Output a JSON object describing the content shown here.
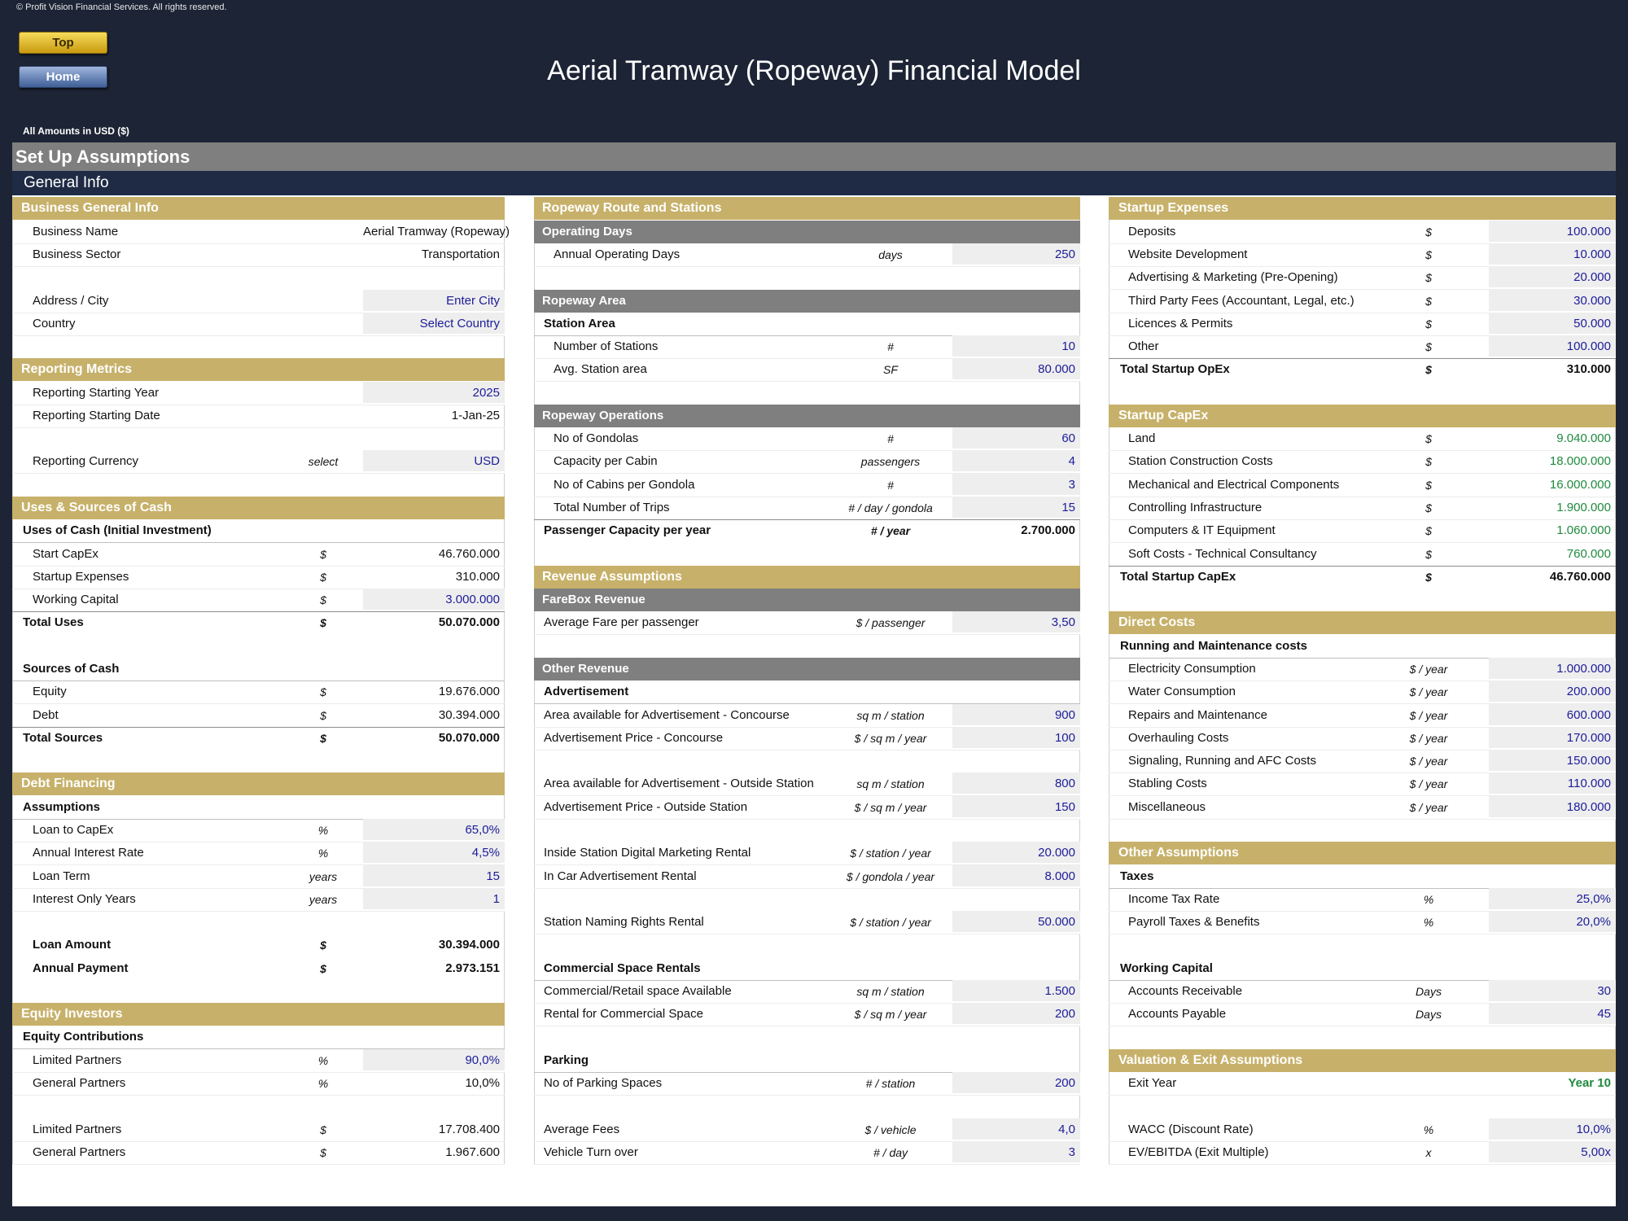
{
  "header": {
    "copyright": "© Profit Vision Financial Services. All rights reserved.",
    "buttons": [
      "Top",
      "Home"
    ],
    "title": "Aerial Tramway (Ropeway) Financial Model",
    "currency_note": "All Amounts in  USD ($)",
    "sheet_title": "Set Up Assumptions",
    "section_title": "General Info"
  },
  "columns": [
    {
      "rows": [
        {
          "kind": "section",
          "label": "Business General Info"
        },
        {
          "kind": "item",
          "label": "Business Name",
          "value": "Aerial Tramway (Ropeway)",
          "style": "calc"
        },
        {
          "kind": "item",
          "label": "Business Sector",
          "value": "Transportation",
          "style": "calc"
        },
        null,
        {
          "kind": "item",
          "label": "Address / City",
          "value": "Enter City",
          "style": "input"
        },
        {
          "kind": "item",
          "label": "Country",
          "value": "Select Country",
          "style": "input"
        },
        null,
        {
          "kind": "section",
          "label": "Reporting Metrics"
        },
        {
          "kind": "item",
          "label": "Reporting Starting Year",
          "value": "2025",
          "style": "input"
        },
        {
          "kind": "item",
          "label": "Reporting Starting Date",
          "value": "1-Jan-25",
          "style": "calc"
        },
        null,
        {
          "kind": "item",
          "label": "Reporting Currency",
          "unit": "select",
          "value": "USD",
          "style": "input"
        },
        null,
        {
          "kind": "section",
          "label": "Uses & Sources of Cash"
        },
        {
          "kind": "heading",
          "label": "Uses of Cash (Initial Investment)"
        },
        {
          "kind": "item",
          "label": "Start CapEx",
          "unit": "$",
          "value": "46.760.000",
          "style": "calc"
        },
        {
          "kind": "item",
          "label": "Startup Expenses",
          "unit": "$",
          "value": "310.000",
          "style": "calc"
        },
        {
          "kind": "item",
          "label": "Working Capital",
          "unit": "$",
          "value": "3.000.000",
          "style": "input"
        },
        {
          "kind": "total",
          "label": "Total Uses",
          "unit": "$",
          "value": "50.070.000",
          "style": "calc"
        },
        null,
        {
          "kind": "heading",
          "label": "Sources of Cash"
        },
        {
          "kind": "item",
          "label": "Equity",
          "unit": "$",
          "value": "19.676.000",
          "style": "calc"
        },
        {
          "kind": "item",
          "label": "Debt",
          "unit": "$",
          "value": "30.394.000",
          "style": "calc"
        },
        {
          "kind": "total",
          "label": "Total Sources",
          "unit": "$",
          "value": "50.070.000",
          "style": "calc"
        },
        null,
        {
          "kind": "section",
          "label": "Debt Financing"
        },
        {
          "kind": "heading",
          "label": "Assumptions"
        },
        {
          "kind": "item",
          "label": "Loan to CapEx",
          "unit": "%",
          "value": "65,0%",
          "style": "input"
        },
        {
          "kind": "item",
          "label": "Annual Interest Rate",
          "unit": "%",
          "value": "4,5%",
          "style": "input"
        },
        {
          "kind": "item",
          "label": "Loan Term",
          "unit": "years",
          "value": "15",
          "style": "input"
        },
        {
          "kind": "item",
          "label": "Interest Only Years",
          "unit": "years",
          "value": "1",
          "style": "input"
        },
        null,
        {
          "kind": "emphasis",
          "label": "Loan Amount",
          "unit": "$",
          "value": "30.394.000",
          "style": "calc"
        },
        {
          "kind": "emphasis",
          "label": "Annual Payment",
          "unit": "$",
          "value": "2.973.151",
          "style": "calc"
        },
        null,
        {
          "kind": "section",
          "label": "Equity Investors"
        },
        {
          "kind": "heading",
          "label": "Equity Contributions"
        },
        {
          "kind": "item",
          "label": "Limited Partners",
          "unit": "%",
          "value": "90,0%",
          "style": "input"
        },
        {
          "kind": "item",
          "label": "General Partners",
          "unit": "%",
          "value": "10,0%",
          "style": "calc"
        },
        null,
        {
          "kind": "item",
          "label": "Limited Partners",
          "unit": "$",
          "value": "17.708.400",
          "style": "calc"
        },
        {
          "kind": "item",
          "label": "General Partners",
          "unit": "$",
          "value": "1.967.600",
          "style": "calc"
        }
      ]
    },
    {
      "rows": [
        {
          "kind": "section",
          "label": "Ropeway Route and Stations"
        },
        {
          "kind": "subsection",
          "label": "Operating Days"
        },
        {
          "kind": "item",
          "label": "Annual Operating Days",
          "unit": "days",
          "value": "250",
          "style": "input"
        },
        null,
        {
          "kind": "subsection",
          "label": "Ropeway Area"
        },
        {
          "kind": "heading",
          "label": "Station Area"
        },
        {
          "kind": "item",
          "label": "Number of Stations",
          "unit": "#",
          "value": "10",
          "style": "input"
        },
        {
          "kind": "item",
          "label": "Avg. Station area",
          "unit": "SF",
          "value": "80.000",
          "style": "input"
        },
        null,
        {
          "kind": "subsection",
          "label": "Ropeway Operations"
        },
        {
          "kind": "item",
          "label": "No of Gondolas",
          "unit": "#",
          "value": "60",
          "style": "input"
        },
        {
          "kind": "item",
          "label": "Capacity per Cabin",
          "unit": "passengers",
          "value": "4",
          "style": "input"
        },
        {
          "kind": "item",
          "label": "No of Cabins per Gondola",
          "unit": "#",
          "value": "3",
          "style": "input"
        },
        {
          "kind": "item",
          "label": "Total Number of Trips",
          "unit": "# / day / gondola",
          "value": "15",
          "style": "input"
        },
        {
          "kind": "total",
          "label": "Passenger Capacity per year",
          "unit": "# / year",
          "value": "2.700.000",
          "style": "calc"
        },
        null,
        {
          "kind": "section",
          "label": "Revenue Assumptions"
        },
        {
          "kind": "subsection",
          "label": "FareBox Revenue"
        },
        {
          "kind": "plain",
          "label": "Average Fare per passenger",
          "unit": "$ / passenger",
          "value": "3,50",
          "style": "input"
        },
        null,
        {
          "kind": "subsection",
          "label": "Other Revenue"
        },
        {
          "kind": "heading",
          "label": "Advertisement"
        },
        {
          "kind": "plain",
          "label": "Area available for Advertisement - Concourse",
          "unit": "sq m / station",
          "value": "900",
          "style": "input"
        },
        {
          "kind": "plain",
          "label": "Advertisement Price - Concourse",
          "unit": "$ / sq m / year",
          "value": "100",
          "style": "input"
        },
        null,
        {
          "kind": "plain",
          "label": "Area available for Advertisement - Outside Station",
          "unit": "sq m / station",
          "value": "800",
          "style": "input"
        },
        {
          "kind": "plain",
          "label": "Advertisement Price - Outside Station",
          "unit": "$ / sq m / year",
          "value": "150",
          "style": "input"
        },
        null,
        {
          "kind": "plain",
          "label": "Inside Station Digital Marketing Rental",
          "unit": "$ / station / year",
          "value": "20.000",
          "style": "input"
        },
        {
          "kind": "plain",
          "label": "In Car Advertisement Rental",
          "unit": "$ / gondola / year",
          "value": "8.000",
          "style": "input"
        },
        null,
        {
          "kind": "plain",
          "label": "Station Naming Rights Rental",
          "unit": "$ / station / year",
          "value": "50.000",
          "style": "input"
        },
        null,
        {
          "kind": "heading",
          "label": "Commercial Space Rentals"
        },
        {
          "kind": "plain",
          "label": "Commercial/Retail space Available",
          "unit": "sq m / station",
          "value": "1.500",
          "style": "input"
        },
        {
          "kind": "plain",
          "label": "Rental for Commercial Space",
          "unit": "$ / sq m / year",
          "value": "200",
          "style": "input"
        },
        null,
        {
          "kind": "heading",
          "label": "Parking"
        },
        {
          "kind": "plain",
          "label": "No of Parking Spaces",
          "unit": "# / station",
          "value": "200",
          "style": "input"
        },
        null,
        {
          "kind": "plain",
          "label": "Average Fees",
          "unit": "$ / vehicle",
          "value": "4,0",
          "style": "input"
        },
        {
          "kind": "plain",
          "label": "Vehicle Turn over",
          "unit": "# / day",
          "value": "3",
          "style": "input"
        }
      ]
    },
    {
      "rows": [
        {
          "kind": "section",
          "label": "Startup Expenses"
        },
        {
          "kind": "item",
          "label": "Deposits",
          "unit": "$",
          "value": "100.000",
          "style": "input"
        },
        {
          "kind": "item",
          "label": "Website Development",
          "unit": "$",
          "value": "10.000",
          "style": "input"
        },
        {
          "kind": "item",
          "label": "Advertising & Marketing (Pre-Opening)",
          "unit": "$",
          "value": "20.000",
          "style": "input"
        },
        {
          "kind": "item",
          "label": "Third Party Fees (Accountant, Legal, etc.)",
          "unit": "$",
          "value": "30.000",
          "style": "input"
        },
        {
          "kind": "item",
          "label": "Licences & Permits",
          "unit": "$",
          "value": "50.000",
          "style": "input"
        },
        {
          "kind": "item",
          "label": "Other",
          "unit": "$",
          "value": "100.000",
          "style": "input"
        },
        {
          "kind": "total",
          "label": "Total Startup OpEx",
          "unit": "$",
          "value": "310.000",
          "style": "calc"
        },
        null,
        {
          "kind": "section",
          "label": "Startup CapEx"
        },
        {
          "kind": "item",
          "label": "Land",
          "unit": "$",
          "value": "9.040.000",
          "style": "link"
        },
        {
          "kind": "item",
          "label": "Station Construction Costs",
          "unit": "$",
          "value": "18.000.000",
          "style": "link"
        },
        {
          "kind": "item",
          "label": "Mechanical and Electrical Components",
          "unit": "$",
          "value": "16.000.000",
          "style": "link"
        },
        {
          "kind": "item",
          "label": "Controlling Infrastructure",
          "unit": "$",
          "value": "1.900.000",
          "style": "link"
        },
        {
          "kind": "item",
          "label": "Computers & IT Equipment",
          "unit": "$",
          "value": "1.060.000",
          "style": "link"
        },
        {
          "kind": "item",
          "label": "Soft Costs - Technical Consultancy",
          "unit": "$",
          "value": "760.000",
          "style": "link"
        },
        {
          "kind": "total",
          "label": "Total Startup CapEx",
          "unit": "$",
          "value": "46.760.000",
          "style": "calc"
        },
        null,
        {
          "kind": "section",
          "label": "Direct Costs"
        },
        {
          "kind": "heading",
          "label": "Running and Maintenance costs"
        },
        {
          "kind": "item",
          "label": "Electricity Consumption",
          "unit": "$ / year",
          "value": "1.000.000",
          "style": "input"
        },
        {
          "kind": "item",
          "label": "Water Consumption",
          "unit": "$ / year",
          "value": "200.000",
          "style": "input"
        },
        {
          "kind": "item",
          "label": "Repairs and Maintenance",
          "unit": "$ / year",
          "value": "600.000",
          "style": "input"
        },
        {
          "kind": "item",
          "label": "Overhauling Costs",
          "unit": "$ / year",
          "value": "170.000",
          "style": "input"
        },
        {
          "kind": "item",
          "label": "Signaling, Running and AFC Costs",
          "unit": "$ / year",
          "value": "150.000",
          "style": "input"
        },
        {
          "kind": "item",
          "label": "Stabling Costs",
          "unit": "$ / year",
          "value": "110.000",
          "style": "input"
        },
        {
          "kind": "item",
          "label": "Miscellaneous",
          "unit": "$ / year",
          "value": "180.000",
          "style": "input"
        },
        null,
        {
          "kind": "section",
          "label": "Other Assumptions"
        },
        {
          "kind": "heading",
          "label": "Taxes"
        },
        {
          "kind": "item",
          "label": "Income Tax Rate",
          "unit": "%",
          "value": "25,0%",
          "style": "input"
        },
        {
          "kind": "item",
          "label": "Payroll Taxes & Benefits",
          "unit": "%",
          "value": "20,0%",
          "style": "input"
        },
        null,
        {
          "kind": "heading",
          "label": "Working Capital"
        },
        {
          "kind": "item",
          "label": "Accounts Receivable",
          "unit": "Days",
          "value": "30",
          "style": "input"
        },
        {
          "kind": "item",
          "label": "Accounts Payable",
          "unit": "Days",
          "value": "45",
          "style": "input"
        },
        null,
        {
          "kind": "section",
          "label": "Valuation & Exit Assumptions"
        },
        {
          "kind": "item",
          "label": "Exit Year",
          "value": "Year 10",
          "style": "linkbold"
        },
        null,
        {
          "kind": "item",
          "label": "WACC (Discount Rate)",
          "unit": "%",
          "value": "10,0%",
          "style": "input"
        },
        {
          "kind": "item",
          "label": "EV/EBITDA (Exit Multiple)",
          "unit": "x",
          "value": "5,00x",
          "style": "input"
        }
      ]
    }
  ]
}
